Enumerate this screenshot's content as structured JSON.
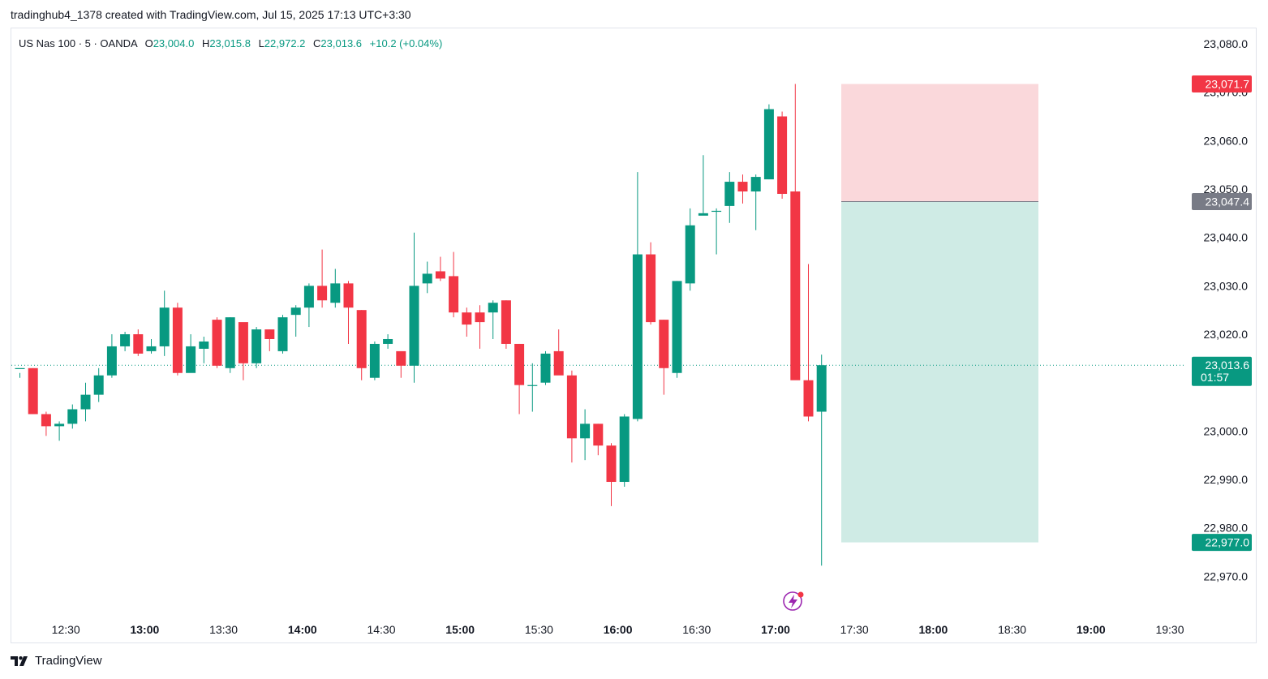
{
  "header": {
    "text": "tradinghub4_1378 created with TradingView.com, Jul 15, 2025 17:13 UTC+3:30"
  },
  "legend": {
    "symbol": "US Nas 100 · 5 · OANDA",
    "open_label": "O",
    "open": "23,004.0",
    "high_label": "H",
    "high": "23,015.8",
    "low_label": "L",
    "low": "22,972.2",
    "close_label": "C",
    "close": "23,013.6",
    "change": "+10.2 (+0.04%)"
  },
  "footer": {
    "brand": "TradingView"
  },
  "colors": {
    "up": "#089981",
    "down": "#f23645",
    "stop_zone": "#fad8db",
    "target_zone": "#cfebe5",
    "grey_tag": "#787b86"
  },
  "chart_data": {
    "type": "candlestick",
    "ylim": [
      22962,
      23083
    ],
    "y_ticks": [
      {
        "value": 23080,
        "label": "23,080.0"
      },
      {
        "value": 23070,
        "label": "23,070.0"
      },
      {
        "value": 23060,
        "label": "23,060.0"
      },
      {
        "value": 23050,
        "label": "23,050.0"
      },
      {
        "value": 23040,
        "label": "23,040.0"
      },
      {
        "value": 23030,
        "label": "23,030.0"
      },
      {
        "value": 23020,
        "label": "23,020.0"
      },
      {
        "value": 23000,
        "label": "23,000.0"
      },
      {
        "value": 22990,
        "label": "22,990.0"
      },
      {
        "value": 22980,
        "label": "22,980.0"
      },
      {
        "value": 22970,
        "label": "22,970.0"
      }
    ],
    "x_ticks": [
      {
        "index": 3.5,
        "label": "12:30",
        "bold": false
      },
      {
        "index": 9.5,
        "label": "13:00",
        "bold": true
      },
      {
        "index": 15.5,
        "label": "13:30",
        "bold": false
      },
      {
        "index": 21.5,
        "label": "14:00",
        "bold": true
      },
      {
        "index": 27.5,
        "label": "14:30",
        "bold": false
      },
      {
        "index": 33.5,
        "label": "15:00",
        "bold": true
      },
      {
        "index": 39.5,
        "label": "15:30",
        "bold": false
      },
      {
        "index": 45.5,
        "label": "16:00",
        "bold": true
      },
      {
        "index": 51.5,
        "label": "16:30",
        "bold": false
      },
      {
        "index": 57.5,
        "label": "17:00",
        "bold": true
      },
      {
        "index": 63.5,
        "label": "17:30",
        "bold": false
      },
      {
        "index": 69.5,
        "label": "18:00",
        "bold": true
      },
      {
        "index": 75.5,
        "label": "18:30",
        "bold": false
      },
      {
        "index": 81.5,
        "label": "19:00",
        "bold": true
      },
      {
        "index": 87.5,
        "label": "19:30",
        "bold": false
      }
    ],
    "candles": [
      [
        23013.0,
        23012.0,
        23011.0,
        23013.0
      ],
      [
        23013.0,
        23013.0,
        23003.5,
        23003.5
      ],
      [
        23003.5,
        23004.0,
        22999.0,
        23001.0
      ],
      [
        23001.0,
        23002.0,
        22998.0,
        23001.5
      ],
      [
        23001.5,
        23005.5,
        23000.5,
        23004.5
      ],
      [
        23004.5,
        23010.0,
        23002.0,
        23007.5
      ],
      [
        23007.5,
        23013.0,
        23006.0,
        23011.5
      ],
      [
        23011.5,
        23020.0,
        23011.0,
        23017.5
      ],
      [
        23017.5,
        23020.5,
        23016.5,
        23020.0
      ],
      [
        23020.0,
        23021.0,
        23015.5,
        23016.0
      ],
      [
        23016.5,
        23019.0,
        23016.0,
        23017.5
      ],
      [
        23017.5,
        23029.0,
        23015.5,
        23025.5
      ],
      [
        23025.5,
        23026.5,
        23011.5,
        23012.0
      ],
      [
        23012.0,
        23020.0,
        23012.5,
        23017.5
      ],
      [
        23017.0,
        23019.5,
        23014.0,
        23018.5
      ],
      [
        23023.0,
        23023.5,
        23013.0,
        23013.5
      ],
      [
        23013.0,
        23023.5,
        23012.0,
        23023.5
      ],
      [
        23022.5,
        23022.0,
        23010.5,
        23014.0
      ],
      [
        23014.0,
        23021.5,
        23013.0,
        23021.0
      ],
      [
        23021.0,
        23021.0,
        23016.5,
        23019.0
      ],
      [
        23016.5,
        23024.0,
        23016.0,
        23023.5
      ],
      [
        23024.0,
        23026.0,
        23019.5,
        23025.5
      ],
      [
        23025.5,
        23030.5,
        23021.5,
        23030.0
      ],
      [
        23030.0,
        23037.5,
        23025.5,
        23027.0
      ],
      [
        23026.5,
        23033.5,
        23025.5,
        23030.5
      ],
      [
        23030.5,
        23031.0,
        23018.0,
        23025.5
      ],
      [
        23025.0,
        23025.0,
        23010.5,
        23013.0
      ],
      [
        23011.0,
        23018.5,
        23010.5,
        23018.0
      ],
      [
        23018.0,
        23020.0,
        23017.0,
        23019.0
      ],
      [
        23016.5,
        23016.0,
        23011.0,
        23013.5
      ],
      [
        23013.5,
        23041.0,
        23010.0,
        23030.0
      ],
      [
        23030.5,
        23035.0,
        23028.5,
        23032.5
      ],
      [
        23033.0,
        23036.0,
        23031.0,
        23031.5
      ],
      [
        23032.0,
        23037.0,
        23023.5,
        23024.5
      ],
      [
        23024.5,
        23025.5,
        23019.5,
        23022.0
      ],
      [
        23024.5,
        23026.0,
        23017.0,
        23022.5
      ],
      [
        23024.5,
        23027.0,
        23019.0,
        23026.5
      ],
      [
        23027.0,
        23027.0,
        23017.0,
        23018.0
      ],
      [
        23018.0,
        23018.0,
        23003.5,
        23009.5
      ],
      [
        23009.5,
        23014.0,
        23004.0,
        23009.5
      ],
      [
        23010.0,
        23016.5,
        23009.5,
        23016.0
      ],
      [
        23016.5,
        23021.0,
        23012.0,
        23011.5
      ],
      [
        23011.5,
        23012.5,
        22993.5,
        22998.5
      ],
      [
        22998.5,
        23004.5,
        22994.0,
        23001.5
      ],
      [
        23001.5,
        23001.5,
        22995.0,
        22997.0
      ],
      [
        22997.0,
        22997.5,
        22984.5,
        22989.5
      ],
      [
        22989.5,
        23003.5,
        22988.5,
        23003.0
      ],
      [
        23002.5,
        23053.5,
        23002.0,
        23036.5
      ],
      [
        23036.5,
        23039.0,
        23022.0,
        23022.5
      ],
      [
        23023.0,
        23023.0,
        23007.5,
        23013.0
      ],
      [
        23012.0,
        23031.0,
        23011.0,
        23031.0
      ],
      [
        23030.5,
        23046.0,
        23029.0,
        23042.5
      ],
      [
        23044.5,
        23057.0,
        23045.0,
        23045.0
      ],
      [
        23045.5,
        23046.0,
        23036.5,
        23045.5
      ],
      [
        23046.5,
        23053.5,
        23043.0,
        23051.5
      ],
      [
        23051.5,
        23053.0,
        23047.0,
        23049.5
      ],
      [
        23049.5,
        23053.0,
        23041.5,
        23052.5
      ],
      [
        23052.0,
        23067.5,
        23052.0,
        23066.5
      ],
      [
        23065.0,
        23066.0,
        23048.0,
        23049.0
      ],
      [
        23049.5,
        23071.7,
        23011.5,
        23010.5
      ],
      [
        23010.5,
        23034.5,
        23002.0,
        23003.0
      ],
      [
        23004.0,
        23015.8,
        22972.2,
        23013.6
      ]
    ],
    "position": {
      "stop_price": 23071.7,
      "stop_label": "23,071.7",
      "entry_price": 23047.4,
      "entry_label": "23,047.4",
      "target_price": 22977.0,
      "target_label": "22,977.0",
      "start_index": 62.5,
      "end_index": 77.5
    },
    "last_price": 23013.6,
    "last_price_label": "23,013.6",
    "countdown": "01:57"
  }
}
